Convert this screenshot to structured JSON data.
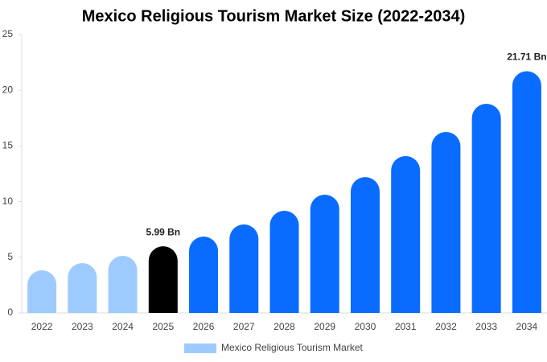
{
  "chart_data": {
    "type": "bar",
    "title": "Mexico Religious Tourism Market Size (2022-2034)",
    "categories": [
      "2022",
      "2023",
      "2024",
      "2025",
      "2026",
      "2027",
      "2028",
      "2029",
      "2030",
      "2031",
      "2032",
      "2033",
      "2034"
    ],
    "series": [
      {
        "name": "Mexico Religious Tourism Market",
        "color": "#9ecbff",
        "values": [
          3.83,
          4.48,
          5.13,
          5.99,
          6.86,
          7.95,
          9.18,
          10.62,
          12.2,
          14.09,
          16.26,
          18.79,
          21.71
        ],
        "value_labels": [
          null,
          null,
          null,
          "5.99 Bn",
          null,
          null,
          null,
          null,
          null,
          null,
          null,
          null,
          "21.71 Bn"
        ],
        "colors": [
          "#9ecbff",
          "#9ecbff",
          "#9ecbff",
          "#000000",
          "#0a6cff",
          "#0a6cff",
          "#0a6cff",
          "#0a6cff",
          "#0a6cff",
          "#0a6cff",
          "#0a6cff",
          "#0a6cff",
          "#0a6cff"
        ]
      }
    ],
    "ylim": [
      0,
      25
    ],
    "yticks": [
      0,
      5,
      10,
      15,
      20,
      25
    ],
    "grid": false
  }
}
